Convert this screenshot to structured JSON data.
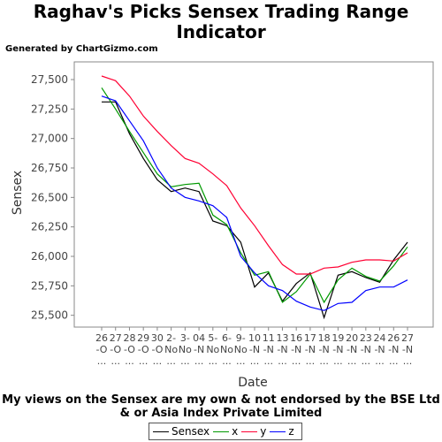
{
  "chart_data": {
    "type": "line",
    "title": "Raghav's Picks Sensex Trading Range Indicator",
    "subtitle": "Generated by ChartGizmo.com",
    "xlabel": "Date",
    "ylabel": "Sensex",
    "ylim": [
      25400,
      27650
    ],
    "yticks": [
      25500,
      25750,
      26000,
      26250,
      26500,
      26750,
      27000,
      27250,
      27500
    ],
    "ytick_labels": [
      "25,500",
      "25,750",
      "26,000",
      "26,250",
      "26,500",
      "26,750",
      "27,000",
      "27,250",
      "27,500"
    ],
    "categories": [
      [
        "26",
        "-O",
        "..."
      ],
      [
        "27",
        "-O",
        "..."
      ],
      [
        "28",
        "-O",
        "..."
      ],
      [
        "29",
        "-O",
        "..."
      ],
      [
        "30",
        "-O",
        "..."
      ],
      [
        "2-",
        "No",
        "..."
      ],
      [
        "3-",
        "No",
        "..."
      ],
      [
        "04",
        "-N",
        "..."
      ],
      [
        "5-",
        "No",
        "..."
      ],
      [
        "6-",
        "No",
        "..."
      ],
      [
        "9-",
        "No",
        "..."
      ],
      [
        "10",
        "-N",
        "..."
      ],
      [
        "11",
        "-N",
        "..."
      ],
      [
        "13",
        "-N",
        "..."
      ],
      [
        "16",
        "-N",
        "..."
      ],
      [
        "17",
        "-N",
        "..."
      ],
      [
        "18",
        "-N",
        "..."
      ],
      [
        "19",
        "-N",
        "..."
      ],
      [
        "20",
        "-N",
        "..."
      ],
      [
        "23",
        "-N",
        "..."
      ],
      [
        "24",
        "-N",
        "..."
      ],
      [
        "26",
        "-N",
        "..."
      ],
      [
        "27",
        "-N",
        "..."
      ]
    ],
    "grid": false,
    "legend_position": "bottom",
    "series": [
      {
        "name": "Sensex",
        "color": "#000000",
        "values": [
          27310,
          27310,
          27040,
          26830,
          26650,
          26550,
          26580,
          26550,
          26300,
          26260,
          26120,
          25740,
          25860,
          25620,
          25770,
          25860,
          25480,
          25840,
          25870,
          25820,
          25780,
          25970,
          26120
        ]
      },
      {
        "name": "x",
        "color": "#009900",
        "values": [
          27430,
          27250,
          27060,
          26880,
          26700,
          26590,
          26610,
          26620,
          26350,
          26270,
          26030,
          25840,
          25870,
          25610,
          25700,
          25850,
          25610,
          25800,
          25900,
          25830,
          25790,
          25920,
          26080
        ]
      },
      {
        "name": "y",
        "color": "#ff0033",
        "values": [
          27530,
          27490,
          27360,
          27190,
          27060,
          26940,
          26830,
          26790,
          26700,
          26600,
          26410,
          26260,
          26090,
          25930,
          25850,
          25850,
          25900,
          25910,
          25950,
          25970,
          25970,
          25960,
          26030
        ]
      },
      {
        "name": "z",
        "color": "#0000ff",
        "values": [
          27360,
          27320,
          27150,
          26980,
          26750,
          26580,
          26500,
          26470,
          26430,
          26330,
          26000,
          25860,
          25750,
          25710,
          25620,
          25570,
          25540,
          25600,
          25610,
          25710,
          25740,
          25740,
          25800
        ]
      }
    ]
  },
  "footer": "My views on the Sensex are my own & not endorsed by the BSE Ltd & or Asia Index Private Limited"
}
